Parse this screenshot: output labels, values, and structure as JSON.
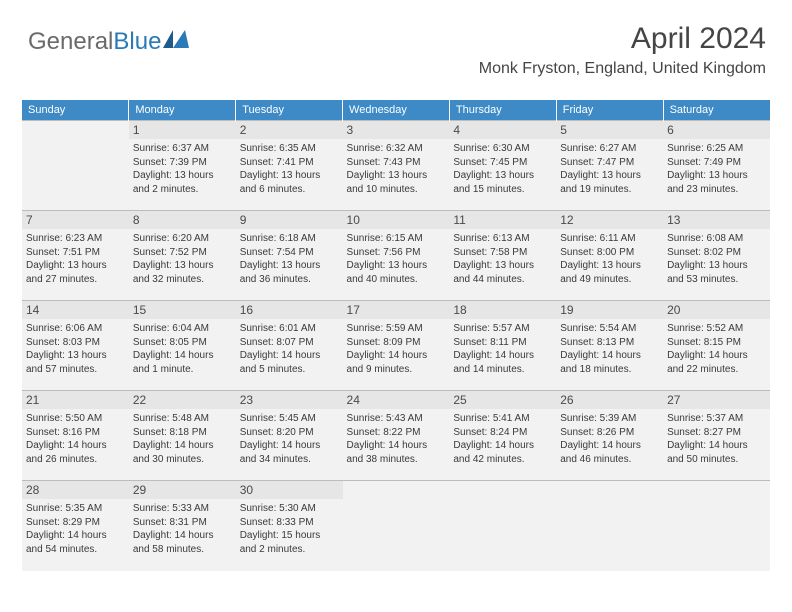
{
  "logo": {
    "part1": "General",
    "part2": "Blue"
  },
  "header": {
    "title": "April 2024",
    "subtitle": "Monk Fryston, England, United Kingdom"
  },
  "colors": {
    "header_bg": "#3d8ac6",
    "header_text": "#ffffff",
    "daynum_bg": "#e6e6e6",
    "cell_bg": "#f2f2f2",
    "border": "#bcbcbc",
    "title_color": "#454545",
    "logo_gray": "#6a6a6a",
    "logo_blue": "#2a7ab7",
    "logo_triangle": "#1f5a8c"
  },
  "typography": {
    "title_fontsize": 30,
    "subtitle_fontsize": 16,
    "dayheader_fontsize": 11,
    "daynum_fontsize": 12,
    "cell_fontsize": 10
  },
  "calendar": {
    "type": "table",
    "columns": [
      "Sunday",
      "Monday",
      "Tuesday",
      "Wednesday",
      "Thursday",
      "Friday",
      "Saturday"
    ],
    "weeks": [
      [
        null,
        {
          "n": "1",
          "sr": "Sunrise: 6:37 AM",
          "ss": "Sunset: 7:39 PM",
          "d1": "Daylight: 13 hours",
          "d2": "and 2 minutes."
        },
        {
          "n": "2",
          "sr": "Sunrise: 6:35 AM",
          "ss": "Sunset: 7:41 PM",
          "d1": "Daylight: 13 hours",
          "d2": "and 6 minutes."
        },
        {
          "n": "3",
          "sr": "Sunrise: 6:32 AM",
          "ss": "Sunset: 7:43 PM",
          "d1": "Daylight: 13 hours",
          "d2": "and 10 minutes."
        },
        {
          "n": "4",
          "sr": "Sunrise: 6:30 AM",
          "ss": "Sunset: 7:45 PM",
          "d1": "Daylight: 13 hours",
          "d2": "and 15 minutes."
        },
        {
          "n": "5",
          "sr": "Sunrise: 6:27 AM",
          "ss": "Sunset: 7:47 PM",
          "d1": "Daylight: 13 hours",
          "d2": "and 19 minutes."
        },
        {
          "n": "6",
          "sr": "Sunrise: 6:25 AM",
          "ss": "Sunset: 7:49 PM",
          "d1": "Daylight: 13 hours",
          "d2": "and 23 minutes."
        }
      ],
      [
        {
          "n": "7",
          "sr": "Sunrise: 6:23 AM",
          "ss": "Sunset: 7:51 PM",
          "d1": "Daylight: 13 hours",
          "d2": "and 27 minutes."
        },
        {
          "n": "8",
          "sr": "Sunrise: 6:20 AM",
          "ss": "Sunset: 7:52 PM",
          "d1": "Daylight: 13 hours",
          "d2": "and 32 minutes."
        },
        {
          "n": "9",
          "sr": "Sunrise: 6:18 AM",
          "ss": "Sunset: 7:54 PM",
          "d1": "Daylight: 13 hours",
          "d2": "and 36 minutes."
        },
        {
          "n": "10",
          "sr": "Sunrise: 6:15 AM",
          "ss": "Sunset: 7:56 PM",
          "d1": "Daylight: 13 hours",
          "d2": "and 40 minutes."
        },
        {
          "n": "11",
          "sr": "Sunrise: 6:13 AM",
          "ss": "Sunset: 7:58 PM",
          "d1": "Daylight: 13 hours",
          "d2": "and 44 minutes."
        },
        {
          "n": "12",
          "sr": "Sunrise: 6:11 AM",
          "ss": "Sunset: 8:00 PM",
          "d1": "Daylight: 13 hours",
          "d2": "and 49 minutes."
        },
        {
          "n": "13",
          "sr": "Sunrise: 6:08 AM",
          "ss": "Sunset: 8:02 PM",
          "d1": "Daylight: 13 hours",
          "d2": "and 53 minutes."
        }
      ],
      [
        {
          "n": "14",
          "sr": "Sunrise: 6:06 AM",
          "ss": "Sunset: 8:03 PM",
          "d1": "Daylight: 13 hours",
          "d2": "and 57 minutes."
        },
        {
          "n": "15",
          "sr": "Sunrise: 6:04 AM",
          "ss": "Sunset: 8:05 PM",
          "d1": "Daylight: 14 hours",
          "d2": "and 1 minute."
        },
        {
          "n": "16",
          "sr": "Sunrise: 6:01 AM",
          "ss": "Sunset: 8:07 PM",
          "d1": "Daylight: 14 hours",
          "d2": "and 5 minutes."
        },
        {
          "n": "17",
          "sr": "Sunrise: 5:59 AM",
          "ss": "Sunset: 8:09 PM",
          "d1": "Daylight: 14 hours",
          "d2": "and 9 minutes."
        },
        {
          "n": "18",
          "sr": "Sunrise: 5:57 AM",
          "ss": "Sunset: 8:11 PM",
          "d1": "Daylight: 14 hours",
          "d2": "and 14 minutes."
        },
        {
          "n": "19",
          "sr": "Sunrise: 5:54 AM",
          "ss": "Sunset: 8:13 PM",
          "d1": "Daylight: 14 hours",
          "d2": "and 18 minutes."
        },
        {
          "n": "20",
          "sr": "Sunrise: 5:52 AM",
          "ss": "Sunset: 8:15 PM",
          "d1": "Daylight: 14 hours",
          "d2": "and 22 minutes."
        }
      ],
      [
        {
          "n": "21",
          "sr": "Sunrise: 5:50 AM",
          "ss": "Sunset: 8:16 PM",
          "d1": "Daylight: 14 hours",
          "d2": "and 26 minutes."
        },
        {
          "n": "22",
          "sr": "Sunrise: 5:48 AM",
          "ss": "Sunset: 8:18 PM",
          "d1": "Daylight: 14 hours",
          "d2": "and 30 minutes."
        },
        {
          "n": "23",
          "sr": "Sunrise: 5:45 AM",
          "ss": "Sunset: 8:20 PM",
          "d1": "Daylight: 14 hours",
          "d2": "and 34 minutes."
        },
        {
          "n": "24",
          "sr": "Sunrise: 5:43 AM",
          "ss": "Sunset: 8:22 PM",
          "d1": "Daylight: 14 hours",
          "d2": "and 38 minutes."
        },
        {
          "n": "25",
          "sr": "Sunrise: 5:41 AM",
          "ss": "Sunset: 8:24 PM",
          "d1": "Daylight: 14 hours",
          "d2": "and 42 minutes."
        },
        {
          "n": "26",
          "sr": "Sunrise: 5:39 AM",
          "ss": "Sunset: 8:26 PM",
          "d1": "Daylight: 14 hours",
          "d2": "and 46 minutes."
        },
        {
          "n": "27",
          "sr": "Sunrise: 5:37 AM",
          "ss": "Sunset: 8:27 PM",
          "d1": "Daylight: 14 hours",
          "d2": "and 50 minutes."
        }
      ],
      [
        {
          "n": "28",
          "sr": "Sunrise: 5:35 AM",
          "ss": "Sunset: 8:29 PM",
          "d1": "Daylight: 14 hours",
          "d2": "and 54 minutes."
        },
        {
          "n": "29",
          "sr": "Sunrise: 5:33 AM",
          "ss": "Sunset: 8:31 PM",
          "d1": "Daylight: 14 hours",
          "d2": "and 58 minutes."
        },
        {
          "n": "30",
          "sr": "Sunrise: 5:30 AM",
          "ss": "Sunset: 8:33 PM",
          "d1": "Daylight: 15 hours",
          "d2": "and 2 minutes."
        },
        null,
        null,
        null,
        null
      ]
    ]
  }
}
